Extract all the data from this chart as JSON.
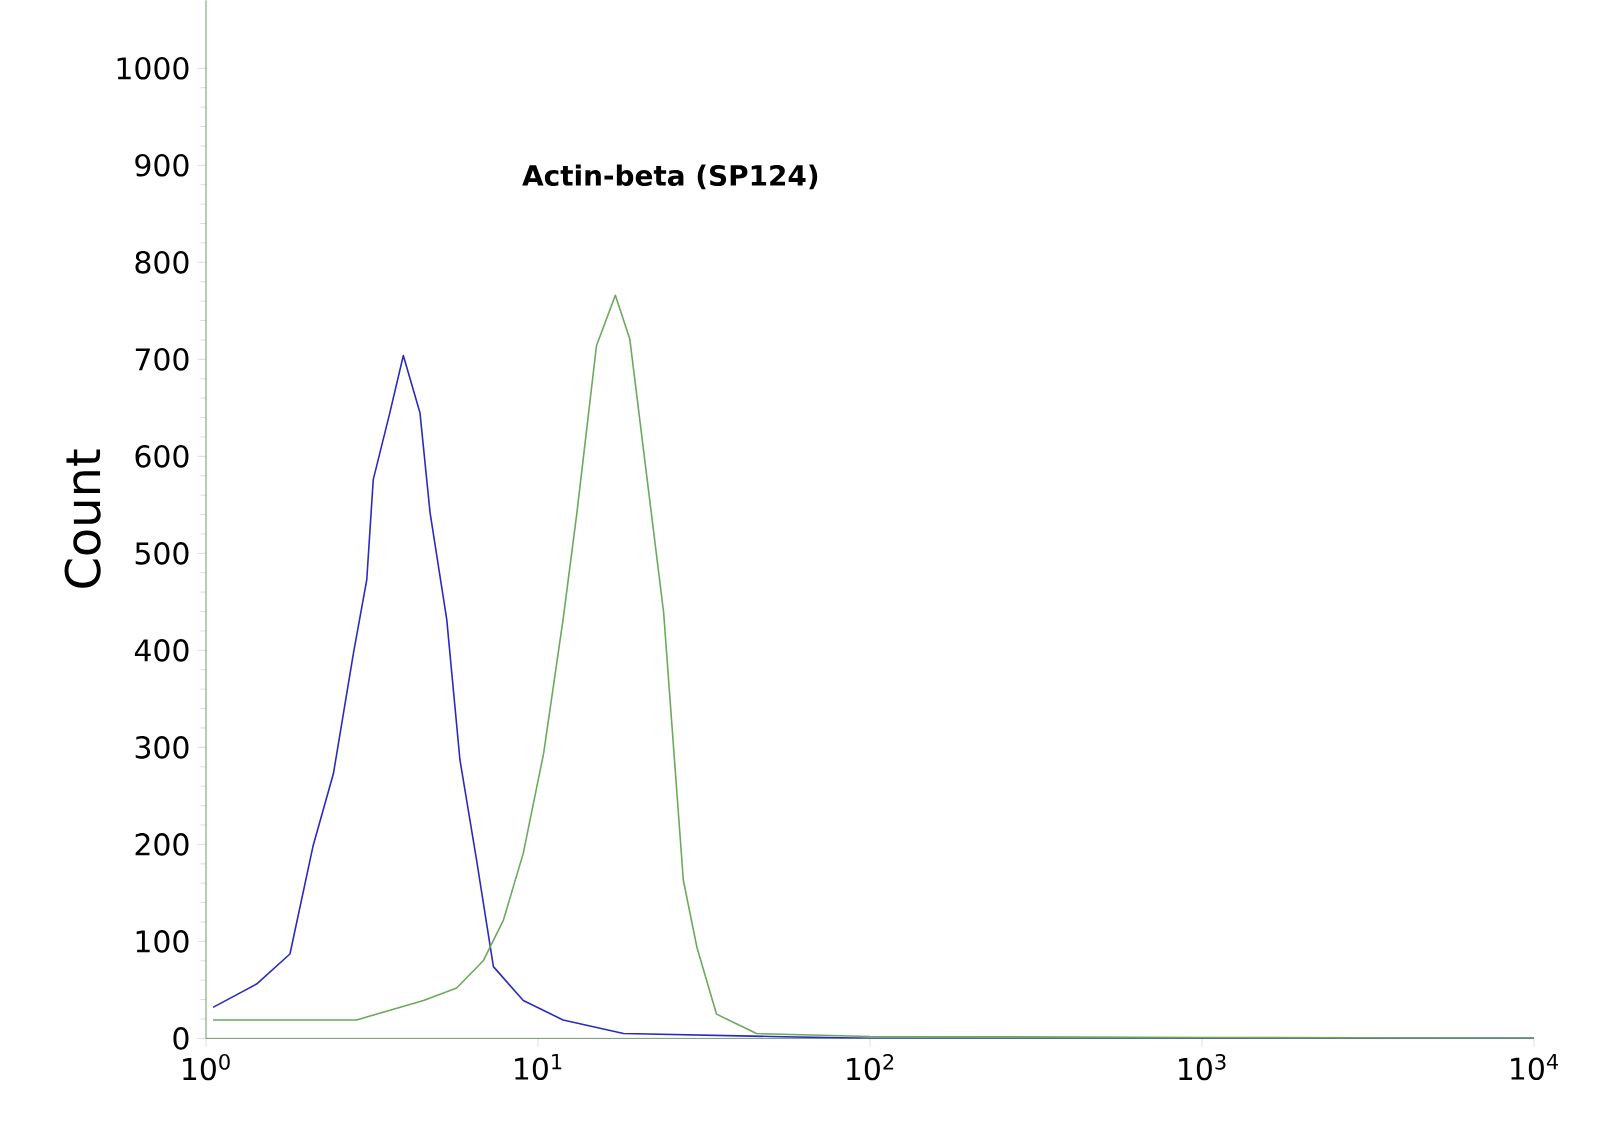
{
  "chart_data": {
    "type": "line",
    "ylabel": "Count",
    "annotations": [
      "Actin-beta  (SP124)"
    ],
    "log": "x",
    "grid": false,
    "marker": "none",
    "line_style": "solid",
    "xlim": [
      1,
      10000
    ],
    "ylim": [
      0,
      1070
    ],
    "xticks": [
      {
        "value": 1,
        "label": "10$^{0}$"
      },
      {
        "value": 10,
        "label": "10$^{1}$"
      },
      {
        "value": 100,
        "label": "10$^{2}$"
      },
      {
        "value": 1000,
        "label": "10$^{3}$"
      },
      {
        "value": 10000,
        "label": "10$^{4}$"
      }
    ],
    "yticks": [
      0,
      100,
      200,
      300,
      400,
      500,
      600,
      700,
      800,
      900,
      1000
    ],
    "series": [
      {
        "color": "#2a2ac0",
        "x": [
          1.05,
          1.42,
          1.79,
          2.1,
          2.42,
          2.78,
          3.05,
          3.19,
          3.58,
          3.93,
          4.41,
          4.73,
          5.31,
          5.82,
          6.53,
          7.34,
          9.03,
          11.9,
          18.1,
          50,
          100,
          10000
        ],
        "values": [
          32,
          56,
          87,
          198,
          273,
          397,
          473,
          576,
          645,
          704,
          645,
          542,
          432,
          287,
          184,
          74,
          39,
          19,
          5,
          2,
          0,
          0
        ]
      },
      {
        "color": "#6aaa5a",
        "x": [
          1.05,
          1.79,
          2.84,
          4.52,
          5.69,
          6.84,
          7.87,
          9.03,
          10.4,
          11.9,
          13.1,
          15.0,
          17.1,
          18.9,
          21.2,
          23.9,
          27.4,
          30.1,
          34.5,
          45.5,
          100,
          1000,
          10000
        ],
        "values": [
          19,
          19,
          19,
          39,
          52,
          80,
          122,
          191,
          294,
          432,
          542,
          714,
          766,
          721,
          583,
          439,
          163,
          94,
          25,
          5,
          2,
          1,
          0
        ]
      }
    ]
  }
}
